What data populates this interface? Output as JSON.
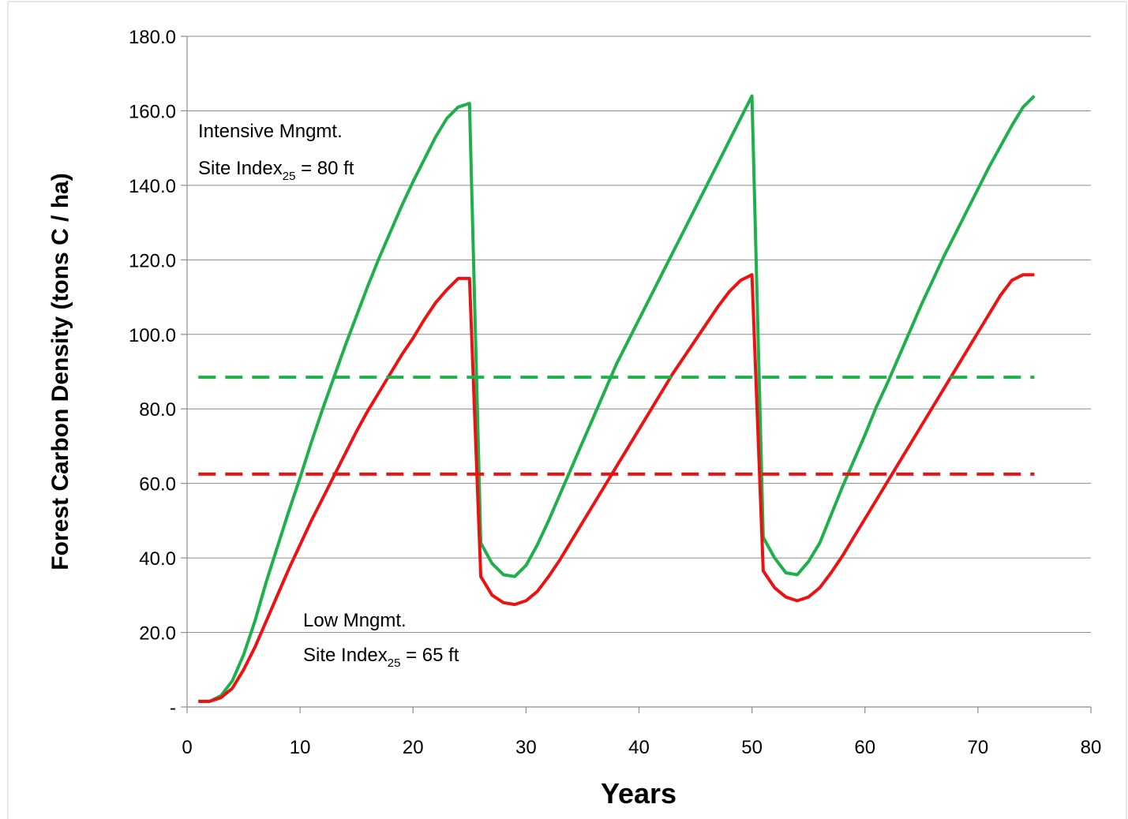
{
  "chart_data": {
    "type": "line",
    "title": "",
    "xlabel": "Years",
    "ylabel": "Forest Carbon Density (tons C / ha)",
    "xlim": [
      0,
      80
    ],
    "ylim": [
      0,
      180
    ],
    "x_ticks": [
      0,
      10,
      20,
      30,
      40,
      50,
      60,
      70,
      80
    ],
    "x_tick_labels": [
      "0",
      "10",
      "20",
      "30",
      "40",
      "50",
      "60",
      "70",
      "80"
    ],
    "y_ticks": [
      0,
      20,
      40,
      60,
      80,
      100,
      120,
      140,
      160,
      180
    ],
    "y_tick_labels": [
      "-",
      "20.0",
      "40.0",
      "60.0",
      "80.0",
      "100.0",
      "120.0",
      "140.0",
      "160.0",
      "180.0"
    ],
    "grid": "horizontal",
    "legend": "none",
    "colors": {
      "intensive": "#1db04b",
      "low": "#ee1111",
      "grid": "#8c8c8c",
      "axis": "#8c8c8c"
    },
    "series": [
      {
        "id": "intensive",
        "style": "solid",
        "color": "#1db04b",
        "x": [
          1,
          2,
          3,
          4,
          5,
          6,
          7,
          8,
          9,
          10,
          11,
          12,
          13,
          14,
          15,
          16,
          17,
          18,
          19,
          20,
          21,
          22,
          23,
          24,
          25,
          26,
          27,
          28,
          29,
          30,
          31,
          32,
          33,
          34,
          35,
          36,
          37,
          38,
          39,
          40,
          41,
          42,
          43,
          44,
          45,
          46,
          47,
          48,
          49,
          50,
          51,
          52,
          53,
          54,
          55,
          56,
          57,
          58,
          59,
          60,
          61,
          62,
          63,
          64,
          65,
          66,
          67,
          68,
          69,
          70,
          71,
          72,
          73,
          74,
          75
        ],
        "y": [
          1.5,
          1.5,
          3,
          7,
          14,
          23,
          33.5,
          43,
          52.5,
          61.5,
          71,
          80,
          88.5,
          97,
          105,
          113,
          120.5,
          127.5,
          134.5,
          141,
          147,
          153,
          158,
          161,
          162,
          44,
          38.5,
          35.5,
          35,
          38,
          43.5,
          50,
          57,
          64,
          71,
          78,
          85,
          92,
          98,
          104,
          110,
          116,
          122,
          128,
          134,
          140,
          146,
          152,
          158,
          164,
          45.5,
          40,
          36,
          35.5,
          39,
          44,
          51.5,
          59,
          66,
          73,
          80.5,
          87,
          94,
          101,
          108,
          114.5,
          121,
          127,
          133,
          139,
          145,
          150.5,
          156,
          161,
          164
        ]
      },
      {
        "id": "low",
        "style": "solid",
        "color": "#ee1111",
        "x": [
          1,
          2,
          3,
          4,
          5,
          6,
          7,
          8,
          9,
          10,
          11,
          12,
          13,
          14,
          15,
          16,
          17,
          18,
          19,
          20,
          21,
          22,
          23,
          24,
          25,
          26,
          27,
          28,
          29,
          30,
          31,
          32,
          33,
          34,
          35,
          36,
          37,
          38,
          39,
          40,
          41,
          42,
          43,
          44,
          45,
          46,
          47,
          48,
          49,
          50,
          51,
          52,
          53,
          54,
          55,
          56,
          57,
          58,
          59,
          60,
          61,
          62,
          63,
          64,
          65,
          66,
          67,
          68,
          69,
          70,
          71,
          72,
          73,
          74,
          75
        ],
        "y": [
          1.5,
          1.5,
          2.5,
          5,
          10,
          16,
          23,
          30,
          37,
          43.5,
          50,
          56,
          62,
          68,
          74,
          79.5,
          84.5,
          89.5,
          94.5,
          99,
          104,
          108.5,
          112,
          115,
          115,
          35,
          30,
          28,
          27.5,
          28.5,
          31,
          35,
          39.5,
          44.5,
          49.5,
          54.5,
          59.5,
          64.5,
          69.5,
          74.5,
          79.5,
          84.5,
          89.5,
          94,
          98.5,
          103,
          107.5,
          111.5,
          114.5,
          116,
          36.5,
          32,
          29.5,
          28.5,
          29.5,
          32,
          36,
          40.5,
          45.5,
          50.5,
          55.5,
          60.5,
          65.5,
          70.5,
          75.5,
          80.5,
          85.5,
          90.5,
          95.5,
          100.5,
          105.5,
          110.5,
          114.5,
          116,
          116
        ]
      },
      {
        "id": "intensive-average",
        "style": "dashed",
        "color": "#1db04b",
        "x": [
          1,
          75
        ],
        "y": [
          88.5,
          88.5
        ]
      },
      {
        "id": "low-average",
        "style": "dashed",
        "color": "#ee1111",
        "x": [
          1,
          75
        ],
        "y": [
          62.5,
          62.5
        ]
      }
    ],
    "annotations": [
      {
        "id": "intensive-label",
        "lines": [
          {
            "text": "Intensive Mngmt."
          },
          {
            "prefix": "Site Index",
            "sub": "25",
            "suffix": " = 80 ft"
          }
        ]
      },
      {
        "id": "low-label",
        "lines": [
          {
            "text": "Low Mngmt."
          },
          {
            "prefix": "Site Index",
            "sub": "25",
            "suffix": " = 65 ft"
          }
        ]
      }
    ]
  }
}
